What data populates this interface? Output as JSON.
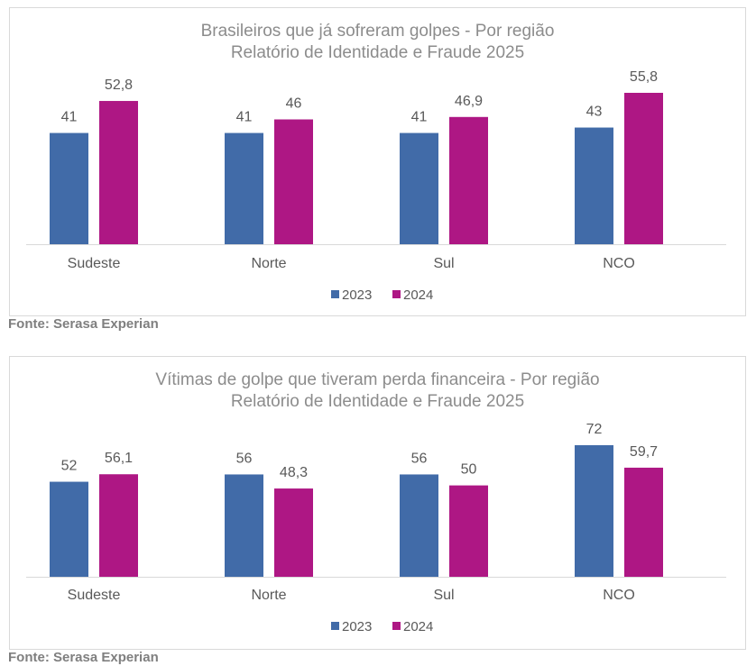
{
  "colors": {
    "series_2023": "#416ba8",
    "series_2024": "#ae1784",
    "axis": "#d9d9d9",
    "title": "#8c8c8c",
    "label": "#595959"
  },
  "chart_data": [
    {
      "type": "bar",
      "title": "Brasileiros que já sofreram golpes - Por região",
      "subtitle": "Relatório de Identidade e Fraude 2025",
      "categories": [
        "Sudeste",
        "Norte",
        "Sul",
        "NCO"
      ],
      "series": [
        {
          "name": "2023",
          "values": [
            41,
            41,
            41,
            43
          ],
          "labels": [
            "41",
            "41",
            "41",
            "43"
          ]
        },
        {
          "name": "2024",
          "values": [
            52.8,
            46,
            46.9,
            55.8
          ],
          "labels": [
            "52,8",
            "46",
            "46,9",
            "55,8"
          ]
        }
      ],
      "legend_position": "bottom",
      "grid": false,
      "ylim": [
        0,
        55.8
      ]
    },
    {
      "type": "bar",
      "title": "Vítimas de golpe que tiveram perda financeira - Por região",
      "subtitle": "Relatório de Identidade e Fraude 2025",
      "categories": [
        "Sudeste",
        "Norte",
        "Sul",
        "NCO"
      ],
      "series": [
        {
          "name": "2023",
          "values": [
            52,
            56,
            56,
            72
          ],
          "labels": [
            "52",
            "56",
            "56",
            "72"
          ]
        },
        {
          "name": "2024",
          "values": [
            56.1,
            48.3,
            50,
            59.7
          ],
          "labels": [
            "56,1",
            "48,3",
            "50",
            "59,7"
          ]
        }
      ],
      "legend_position": "bottom",
      "grid": false,
      "ylim": [
        0,
        72
      ]
    }
  ],
  "sources": [
    "Fonte: Serasa Experian",
    "Fonte: Serasa Experian"
  ]
}
